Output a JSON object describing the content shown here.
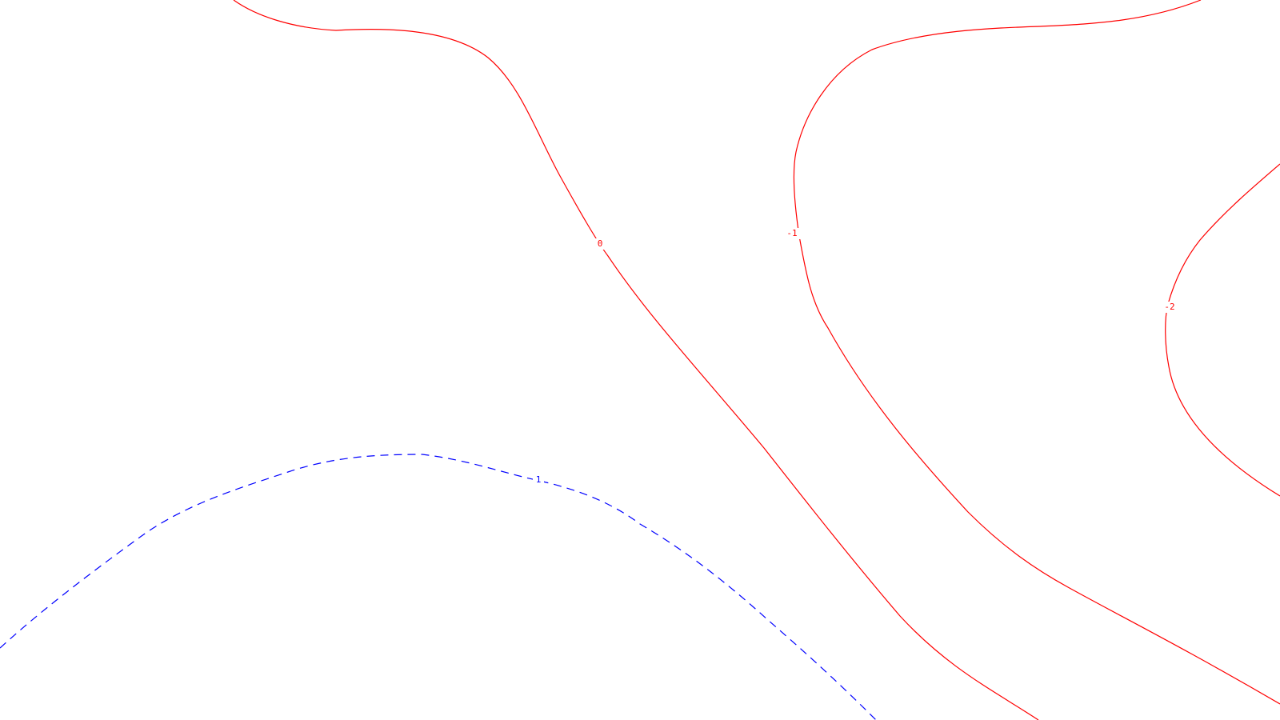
{
  "map": {
    "colors": {
      "background": "#ffffff",
      "positive_or_zero": "#ff0000",
      "negative_line": "#ff0000",
      "dashed_line": "#0000ff"
    },
    "contours": [
      {
        "id": "c0",
        "label": "0",
        "color": "#ff0000",
        "style": "solid"
      },
      {
        "id": "c-1",
        "label": "-1",
        "color": "#ff0000",
        "style": "solid"
      },
      {
        "id": "c-2",
        "label": "-2",
        "color": "#ff0000",
        "style": "solid"
      },
      {
        "id": "c1",
        "label": "1",
        "color": "#0000ff",
        "style": "dashed"
      }
    ]
  }
}
